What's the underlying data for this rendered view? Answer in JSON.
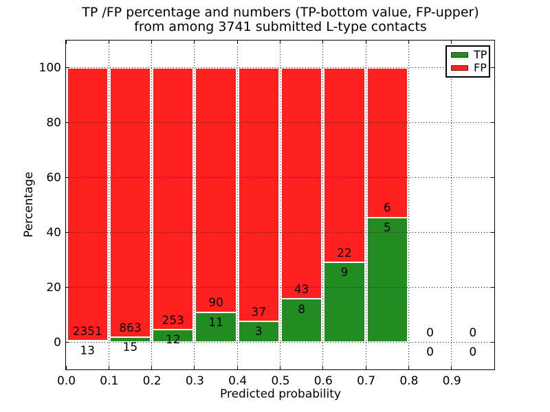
{
  "chart_data": {
    "type": "bar",
    "stacked": true,
    "normalized_to_percent": true,
    "title_lines": [
      "TP /FP percentage and numbers (TP-bottom value, FP-upper)",
      "from among 3741 submitted L-type contacts"
    ],
    "xlabel": "Predicted probability",
    "ylabel": "Percentage",
    "total_submitted": 3741,
    "bin_width": 0.1,
    "categories": [
      0.0,
      0.1,
      0.2,
      0.3,
      0.4,
      0.5,
      0.6,
      0.7,
      0.8,
      0.9
    ],
    "series": [
      {
        "name": "TP",
        "color": "#228b22",
        "counts": [
          13,
          15,
          12,
          11,
          3,
          8,
          9,
          5,
          0,
          0
        ],
        "percent_values": [
          0.55,
          1.71,
          4.53,
          10.89,
          7.5,
          15.69,
          29.03,
          45.45,
          0,
          0
        ]
      },
      {
        "name": "FP",
        "color": "#ff2020",
        "counts": [
          2351,
          863,
          253,
          90,
          37,
          43,
          22,
          6,
          0,
          0
        ],
        "percent_values": [
          99.45,
          98.29,
          95.47,
          89.11,
          92.5,
          84.31,
          70.97,
          54.55,
          0,
          0
        ]
      }
    ],
    "annotation_rule": "TP count shown below stack boundary, FP count shown above stack boundary",
    "xtick_labels": [
      "0.0",
      "0.1",
      "0.2",
      "0.3",
      "0.4",
      "0.5",
      "0.6",
      "0.7",
      "0.8",
      "0.9"
    ],
    "xtick_values": [
      0.0,
      0.1,
      0.2,
      0.3,
      0.4,
      0.5,
      0.6,
      0.7,
      0.8,
      0.9
    ],
    "ytick_labels": [
      "0",
      "20",
      "40",
      "60",
      "80",
      "100"
    ],
    "ytick_values": [
      0,
      20,
      40,
      60,
      80,
      100
    ],
    "xlim": [
      0.0,
      1.0
    ],
    "ylim": [
      -10,
      110
    ],
    "grid": true,
    "grid_style": "dotted",
    "legend": {
      "position": "upper right"
    }
  }
}
